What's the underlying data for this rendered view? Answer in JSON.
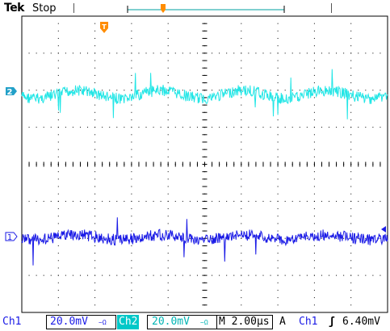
{
  "header": {
    "brand": "Tek",
    "state": "Stop"
  },
  "markers": {
    "ch2": "2",
    "ch1": "1",
    "trigger_top": "T"
  },
  "status": {
    "ch1_label": "Ch1",
    "ch1_scale": "20.0mV",
    "ch1_coupling": "~Ω",
    "ch2_label": "Ch2",
    "ch2_scale": "20.0mV",
    "ch2_coupling": "~Ω",
    "timebase": "M 2.00µs",
    "trigger_mode": "A",
    "trigger_source": "Ch1",
    "trigger_slope": "ʃ",
    "trigger_level": "6.40mV"
  },
  "colors": {
    "ch1": "#1a1ae6",
    "ch2": "#22e6e6",
    "trigger": "#ff8c00",
    "grid": "#000000"
  }
}
